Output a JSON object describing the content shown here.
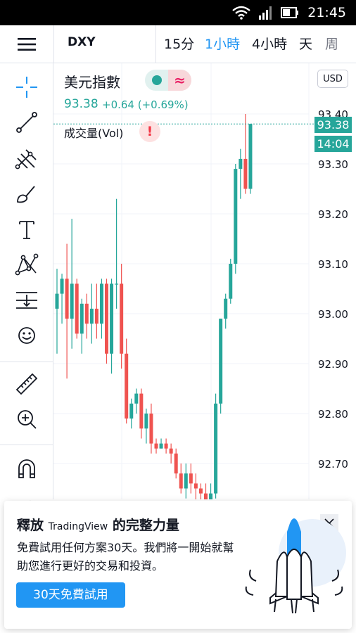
{
  "status_bar": {
    "time": "21:45"
  },
  "header": {
    "symbol": "DXY",
    "timeframes": [
      {
        "label": "15分",
        "state": "normal"
      },
      {
        "label": "1小時",
        "state": "active"
      },
      {
        "label": "4小時",
        "state": "normal"
      },
      {
        "label": "天",
        "state": "normal"
      },
      {
        "label": "周",
        "state": "muted"
      }
    ]
  },
  "toolbar": {
    "tools": [
      "crosshair-icon",
      "trend-line-icon",
      "pitchfork-icon",
      "brush-icon",
      "text-icon",
      "pattern-icon",
      "measure-lines-icon",
      "emoji-icon",
      "ruler-icon",
      "zoom-in-icon",
      "magnet-icon",
      "pencil-lock-icon"
    ]
  },
  "legend": {
    "title": "美元指數",
    "price": "93.38",
    "change": "+0.64 (+0.69%)",
    "volume_label": "成交量(Vol)"
  },
  "price_axis": {
    "currency": "USD",
    "labels": [
      "93.40",
      "93.30",
      "93.20",
      "93.10",
      "93.00",
      "92.90",
      "92.80",
      "92.70"
    ],
    "last_price": "93.38",
    "countdown": "14:04"
  },
  "colors": {
    "up": "#26a69a",
    "down": "#ef5350",
    "accent": "#2196f3"
  },
  "chart_data": {
    "type": "candlestick",
    "symbol": "DXY",
    "y_range": [
      92.62,
      93.45
    ],
    "last_price": 93.38,
    "candles": [
      {
        "o": 93.01,
        "h": 93.09,
        "l": 92.92,
        "c": 93.04
      },
      {
        "o": 93.04,
        "h": 93.08,
        "l": 92.98,
        "c": 93.07
      },
      {
        "o": 93.07,
        "h": 93.14,
        "l": 92.87,
        "c": 92.99
      },
      {
        "o": 92.99,
        "h": 93.19,
        "l": 92.93,
        "c": 93.06
      },
      {
        "o": 93.06,
        "h": 93.07,
        "l": 92.95,
        "c": 92.96
      },
      {
        "o": 92.96,
        "h": 93.03,
        "l": 92.92,
        "c": 93.02
      },
      {
        "o": 93.02,
        "h": 93.04,
        "l": 92.95,
        "c": 92.98
      },
      {
        "o": 92.98,
        "h": 93.06,
        "l": 92.94,
        "c": 93.01
      },
      {
        "o": 93.01,
        "h": 93.06,
        "l": 92.95,
        "c": 92.98
      },
      {
        "o": 92.98,
        "h": 93.07,
        "l": 92.95,
        "c": 93.06
      },
      {
        "o": 93.06,
        "h": 93.07,
        "l": 92.9,
        "c": 92.92
      },
      {
        "o": 92.92,
        "h": 93.07,
        "l": 92.88,
        "c": 93.06
      },
      {
        "o": 93.06,
        "h": 93.23,
        "l": 93.01,
        "c": 93.06
      },
      {
        "o": 93.06,
        "h": 93.1,
        "l": 92.89,
        "c": 92.92
      },
      {
        "o": 92.92,
        "h": 92.95,
        "l": 92.78,
        "c": 92.79
      },
      {
        "o": 92.79,
        "h": 92.83,
        "l": 92.77,
        "c": 92.82
      },
      {
        "o": 92.82,
        "h": 92.85,
        "l": 92.8,
        "c": 92.84
      },
      {
        "o": 92.84,
        "h": 92.85,
        "l": 92.75,
        "c": 92.77
      },
      {
        "o": 92.77,
        "h": 92.81,
        "l": 92.74,
        "c": 92.8
      },
      {
        "o": 92.8,
        "h": 92.82,
        "l": 92.72,
        "c": 92.74
      },
      {
        "o": 92.74,
        "h": 92.75,
        "l": 92.72,
        "c": 92.73
      },
      {
        "o": 92.73,
        "h": 92.75,
        "l": 92.73,
        "c": 92.74
      },
      {
        "o": 92.74,
        "h": 92.75,
        "l": 92.72,
        "c": 92.73
      },
      {
        "o": 92.73,
        "h": 92.74,
        "l": 92.7,
        "c": 92.72
      },
      {
        "o": 92.72,
        "h": 92.73,
        "l": 92.67,
        "c": 92.68
      },
      {
        "o": 92.68,
        "h": 92.7,
        "l": 92.64,
        "c": 92.65
      },
      {
        "o": 92.65,
        "h": 92.7,
        "l": 92.63,
        "c": 92.68
      },
      {
        "o": 92.68,
        "h": 92.7,
        "l": 92.64,
        "c": 92.66
      },
      {
        "o": 92.66,
        "h": 92.68,
        "l": 92.62,
        "c": 92.65
      },
      {
        "o": 92.65,
        "h": 92.66,
        "l": 92.62,
        "c": 92.64
      },
      {
        "o": 92.64,
        "h": 92.66,
        "l": 92.62,
        "c": 92.62
      },
      {
        "o": 92.62,
        "h": 92.66,
        "l": 92.6,
        "c": 92.64
      },
      {
        "o": 92.64,
        "h": 92.84,
        "l": 92.63,
        "c": 92.82
      },
      {
        "o": 92.82,
        "h": 92.99,
        "l": 92.8,
        "c": 92.99
      },
      {
        "o": 92.99,
        "h": 93.04,
        "l": 92.97,
        "c": 93.03
      },
      {
        "o": 93.03,
        "h": 93.11,
        "l": 93.02,
        "c": 93.1
      },
      {
        "o": 93.1,
        "h": 93.3,
        "l": 93.08,
        "c": 93.29
      },
      {
        "o": 93.29,
        "h": 93.33,
        "l": 93.23,
        "c": 93.31
      },
      {
        "o": 93.31,
        "h": 93.4,
        "l": 93.24,
        "c": 93.25
      },
      {
        "o": 93.25,
        "h": 93.38,
        "l": 93.24,
        "c": 93.38
      }
    ]
  },
  "promo": {
    "title_prefix": "釋放 ",
    "brand": "TradingView",
    "title_suffix": " 的完整力量",
    "body": "免費試用任何方案30天。我們將一開始就幫助您進行更好的交易和投資。",
    "cta": "30天免費試用"
  }
}
